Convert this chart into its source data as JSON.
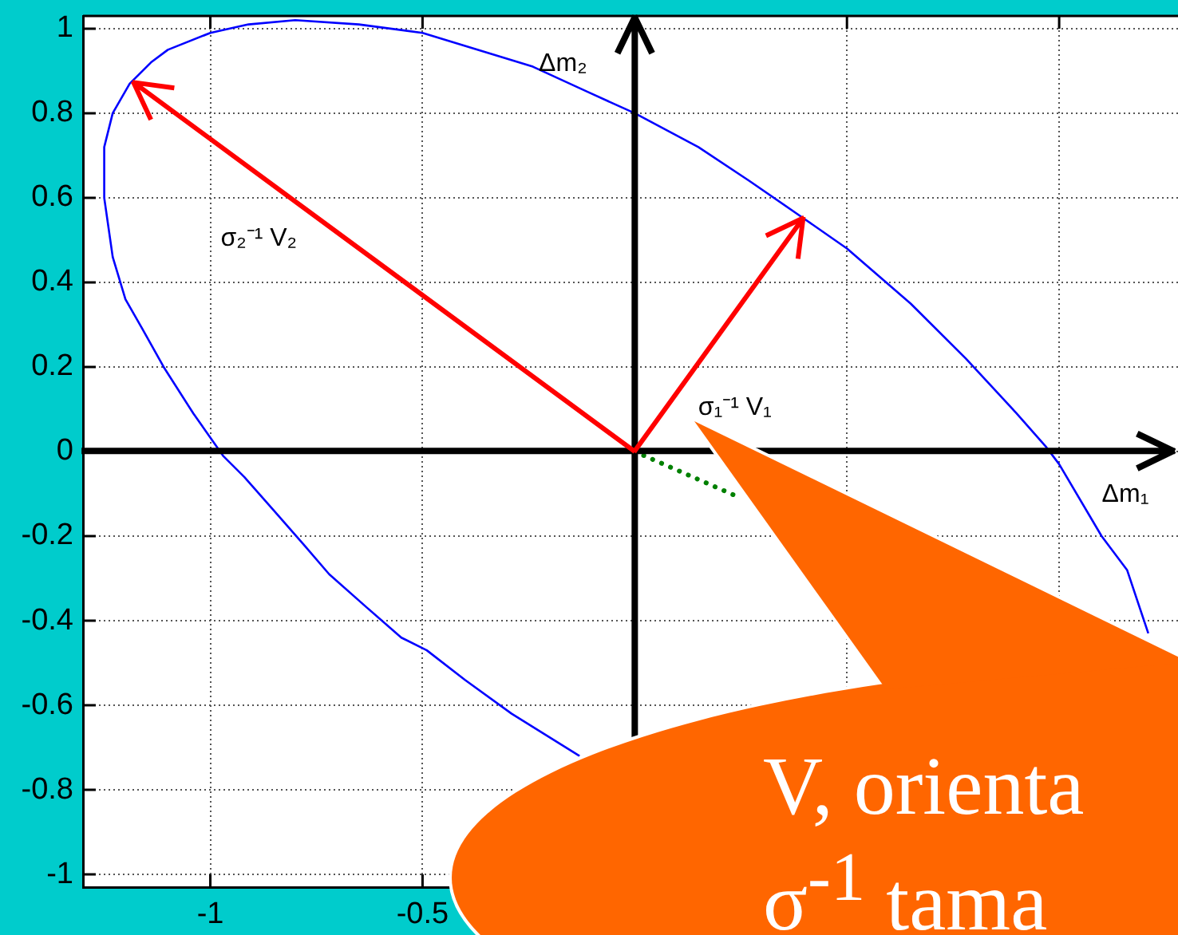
{
  "chart_data": {
    "type": "line",
    "xlabel": "Δm₁",
    "ylabel": "Δm₂",
    "xlim": [
      -1.3,
      1.28
    ],
    "ylim": [
      -1.03,
      1.03
    ],
    "xticks": [
      -1,
      -0.5,
      {
        "value": 0,
        "label": null
      },
      {
        "value": 0.5,
        "label": null
      },
      {
        "value": 1,
        "label": null
      }
    ],
    "yticks": [
      -1,
      -0.8,
      -0.6,
      -0.4,
      -0.2,
      0,
      0.2,
      0.4,
      0.6,
      0.8,
      1
    ],
    "grid": true,
    "series": [
      {
        "color": "#0000ff",
        "x": [
          1.21,
          1.16,
          1.1,
          1.0,
          0.97,
          0.9,
          0.78,
          0.65,
          0.5,
          0.4,
          0.27,
          0.15,
          0,
          -0.11,
          -0.24,
          -0.5,
          -0.65,
          -0.8,
          -0.91,
          -1.0,
          -1.1,
          -1.14,
          -1.19,
          -1.23,
          -1.25,
          -1.25,
          -1.23,
          -1.2,
          -1.16,
          -1.11,
          -1.04,
          -0.97,
          -0.92,
          -0.85,
          -0.78,
          -0.72,
          -0.63,
          -0.55,
          -0.49,
          -0.4,
          -0.29,
          -0.21,
          -0.13
        ],
        "values": [
          -0.43,
          -0.28,
          -0.2,
          -0.03,
          0.01,
          0.09,
          0.22,
          0.35,
          0.48,
          0.55,
          0.64,
          0.72,
          0.8,
          0.85,
          0.91,
          0.99,
          1.01,
          1.02,
          1.01,
          0.99,
          0.95,
          0.92,
          0.87,
          0.8,
          0.72,
          0.6,
          0.46,
          0.36,
          0.29,
          0.2,
          0.09,
          -0.01,
          -0.06,
          -0.14,
          -0.22,
          -0.29,
          -0.37,
          -0.44,
          -0.47,
          -0.54,
          -0.62,
          -0.67,
          -0.72
        ]
      },
      {
        "color": "#008000",
        "line_style": "dotted",
        "x": [
          0,
          0.25
        ],
        "values": [
          0,
          -0.11
        ]
      }
    ],
    "annotations": [
      "σ₂⁻¹ V₂",
      "σ₁⁻¹ V₁",
      "V, orienta",
      "σ$^{-1}$ tama"
    ]
  }
}
